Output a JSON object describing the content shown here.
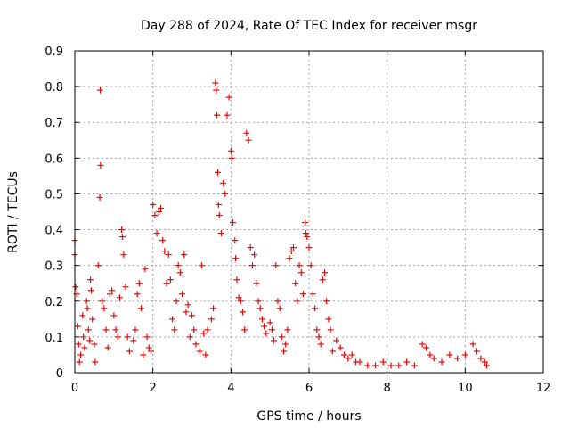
{
  "chart_data": {
    "type": "scatter",
    "title": "Day 288 of 2024, Rate Of TEC Index for receiver msgr",
    "xlabel": "GPS time / hours",
    "ylabel": "ROTI / TECUs",
    "xlim": [
      0,
      12
    ],
    "ylim": [
      0,
      0.9
    ],
    "xticks": [
      "0",
      "2",
      "4",
      "6",
      "8",
      "10",
      "12"
    ],
    "yticks": [
      "0",
      "0.1",
      "0.2",
      "0.3",
      "0.4",
      "0.5",
      "0.6",
      "0.7",
      "0.8",
      "0.9"
    ],
    "grid": true,
    "marker": "+",
    "color": "#ff0000",
    "series": [
      {
        "name": "ROTI",
        "points": [
          [
            0.0,
            0.37
          ],
          [
            0.0,
            0.33
          ],
          [
            0.02,
            0.24
          ],
          [
            0.05,
            0.22
          ],
          [
            0.08,
            0.13
          ],
          [
            0.1,
            0.08
          ],
          [
            0.12,
            0.03
          ],
          [
            0.15,
            0.05
          ],
          [
            0.2,
            0.16
          ],
          [
            0.22,
            0.1
          ],
          [
            0.25,
            0.07
          ],
          [
            0.3,
            0.2
          ],
          [
            0.32,
            0.18
          ],
          [
            0.35,
            0.12
          ],
          [
            0.38,
            0.09
          ],
          [
            0.4,
            0.26
          ],
          [
            0.42,
            0.23
          ],
          [
            0.45,
            0.15
          ],
          [
            0.5,
            0.08
          ],
          [
            0.52,
            0.03
          ],
          [
            0.6,
            0.3
          ],
          [
            0.65,
            0.79
          ],
          [
            0.66,
            0.58
          ],
          [
            0.64,
            0.49
          ],
          [
            0.7,
            0.2
          ],
          [
            0.75,
            0.18
          ],
          [
            0.8,
            0.12
          ],
          [
            0.85,
            0.07
          ],
          [
            0.9,
            0.22
          ],
          [
            0.95,
            0.23
          ],
          [
            1.0,
            0.16
          ],
          [
            1.05,
            0.12
          ],
          [
            1.1,
            0.1
          ],
          [
            1.15,
            0.21
          ],
          [
            1.2,
            0.4
          ],
          [
            1.22,
            0.38
          ],
          [
            1.25,
            0.33
          ],
          [
            1.3,
            0.24
          ],
          [
            1.35,
            0.1
          ],
          [
            1.4,
            0.06
          ],
          [
            1.5,
            0.09
          ],
          [
            1.55,
            0.12
          ],
          [
            1.6,
            0.22
          ],
          [
            1.65,
            0.25
          ],
          [
            1.7,
            0.18
          ],
          [
            1.75,
            0.05
          ],
          [
            1.8,
            0.29
          ],
          [
            1.85,
            0.1
          ],
          [
            1.9,
            0.07
          ],
          [
            1.95,
            0.06
          ],
          [
            2.0,
            0.47
          ],
          [
            2.05,
            0.44
          ],
          [
            2.1,
            0.39
          ],
          [
            2.15,
            0.45
          ],
          [
            2.2,
            0.46
          ],
          [
            2.25,
            0.37
          ],
          [
            2.3,
            0.34
          ],
          [
            2.35,
            0.25
          ],
          [
            2.4,
            0.33
          ],
          [
            2.45,
            0.26
          ],
          [
            2.5,
            0.15
          ],
          [
            2.55,
            0.12
          ],
          [
            2.6,
            0.2
          ],
          [
            2.65,
            0.3
          ],
          [
            2.7,
            0.28
          ],
          [
            2.75,
            0.22
          ],
          [
            2.8,
            0.33
          ],
          [
            2.85,
            0.17
          ],
          [
            2.9,
            0.19
          ],
          [
            2.95,
            0.1
          ],
          [
            3.0,
            0.16
          ],
          [
            3.05,
            0.12
          ],
          [
            3.1,
            0.08
          ],
          [
            3.2,
            0.06
          ],
          [
            3.25,
            0.3
          ],
          [
            3.3,
            0.11
          ],
          [
            3.35,
            0.05
          ],
          [
            3.4,
            0.12
          ],
          [
            3.5,
            0.15
          ],
          [
            3.55,
            0.18
          ],
          [
            3.6,
            0.81
          ],
          [
            3.62,
            0.79
          ],
          [
            3.64,
            0.72
          ],
          [
            3.66,
            0.56
          ],
          [
            3.68,
            0.47
          ],
          [
            3.7,
            0.44
          ],
          [
            3.75,
            0.39
          ],
          [
            3.8,
            0.53
          ],
          [
            3.85,
            0.5
          ],
          [
            3.9,
            0.72
          ],
          [
            3.95,
            0.77
          ],
          [
            4.0,
            0.62
          ],
          [
            4.02,
            0.6
          ],
          [
            4.05,
            0.42
          ],
          [
            4.1,
            0.37
          ],
          [
            4.12,
            0.32
          ],
          [
            4.15,
            0.26
          ],
          [
            4.2,
            0.21
          ],
          [
            4.25,
            0.2
          ],
          [
            4.3,
            0.17
          ],
          [
            4.35,
            0.12
          ],
          [
            4.4,
            0.67
          ],
          [
            4.45,
            0.65
          ],
          [
            4.5,
            0.35
          ],
          [
            4.55,
            0.3
          ],
          [
            4.6,
            0.33
          ],
          [
            4.65,
            0.25
          ],
          [
            4.7,
            0.2
          ],
          [
            4.75,
            0.18
          ],
          [
            4.8,
            0.15
          ],
          [
            4.85,
            0.13
          ],
          [
            4.9,
            0.11
          ],
          [
            5.0,
            0.14
          ],
          [
            5.05,
            0.12
          ],
          [
            5.1,
            0.09
          ],
          [
            5.15,
            0.3
          ],
          [
            5.2,
            0.2
          ],
          [
            5.25,
            0.18
          ],
          [
            5.3,
            0.1
          ],
          [
            5.35,
            0.06
          ],
          [
            5.4,
            0.08
          ],
          [
            5.45,
            0.12
          ],
          [
            5.5,
            0.32
          ],
          [
            5.55,
            0.34
          ],
          [
            5.6,
            0.35
          ],
          [
            5.65,
            0.25
          ],
          [
            5.7,
            0.2
          ],
          [
            5.75,
            0.3
          ],
          [
            5.8,
            0.28
          ],
          [
            5.85,
            0.22
          ],
          [
            5.9,
            0.42
          ],
          [
            5.92,
            0.39
          ],
          [
            5.95,
            0.38
          ],
          [
            6.0,
            0.35
          ],
          [
            6.05,
            0.3
          ],
          [
            6.1,
            0.22
          ],
          [
            6.15,
            0.18
          ],
          [
            6.2,
            0.12
          ],
          [
            6.25,
            0.1
          ],
          [
            6.3,
            0.08
          ],
          [
            6.35,
            0.26
          ],
          [
            6.4,
            0.28
          ],
          [
            6.45,
            0.2
          ],
          [
            6.5,
            0.15
          ],
          [
            6.55,
            0.12
          ],
          [
            6.6,
            0.06
          ],
          [
            6.7,
            0.09
          ],
          [
            6.8,
            0.07
          ],
          [
            6.9,
            0.05
          ],
          [
            7.0,
            0.04
          ],
          [
            7.1,
            0.05
          ],
          [
            7.2,
            0.03
          ],
          [
            7.3,
            0.03
          ],
          [
            7.5,
            0.02
          ],
          [
            7.7,
            0.02
          ],
          [
            7.9,
            0.03
          ],
          [
            8.1,
            0.02
          ],
          [
            8.3,
            0.02
          ],
          [
            8.5,
            0.03
          ],
          [
            8.7,
            0.02
          ],
          [
            8.9,
            0.08
          ],
          [
            9.0,
            0.07
          ],
          [
            9.1,
            0.05
          ],
          [
            9.2,
            0.04
          ],
          [
            9.4,
            0.03
          ],
          [
            9.6,
            0.05
          ],
          [
            9.8,
            0.04
          ],
          [
            10.0,
            0.05
          ],
          [
            10.2,
            0.08
          ],
          [
            10.3,
            0.06
          ],
          [
            10.4,
            0.04
          ],
          [
            10.5,
            0.03
          ],
          [
            10.55,
            0.02
          ]
        ]
      }
    ]
  }
}
